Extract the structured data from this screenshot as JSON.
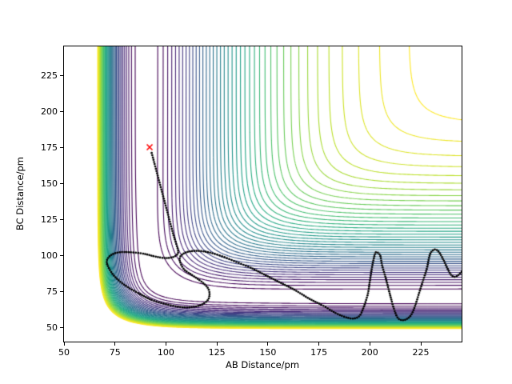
{
  "chart_data": {
    "type": "contour",
    "title": "",
    "xlabel": "AB Distance/pm",
    "ylabel": "BC Distance/pm",
    "xlim": [
      50,
      245
    ],
    "ylim": [
      40,
      245
    ],
    "xticks": [
      50,
      75,
      100,
      125,
      150,
      175,
      200,
      225
    ],
    "yticks": [
      50,
      75,
      100,
      125,
      150,
      175,
      200,
      225
    ],
    "grid": false,
    "legend": "none",
    "colormap": "viridis",
    "colormap_stops": [
      "#440154",
      "#482475",
      "#414487",
      "#355f8d",
      "#2a788e",
      "#21918c",
      "#22a884",
      "#44bf70",
      "#7ad151",
      "#bddf26",
      "#fde725"
    ],
    "levels": {
      "min": -4.58,
      "max": -0.22,
      "count": 40
    },
    "surface": {
      "model": "collinear-LEPS-potential-energy-surface",
      "sato": 0.18,
      "pairs": {
        "AB": {
          "D": 4.7,
          "beta": 0.029,
          "re": 90
        },
        "BC": {
          "D": 4.7,
          "beta": 0.031,
          "re": 71
        },
        "AC": {
          "D": 4.7,
          "beta": 0.029,
          "re": 81
        }
      }
    },
    "start_marker": {
      "symbol": "x",
      "color": "#ff0000",
      "x": 92,
      "y": 175
    },
    "trajectory": {
      "style": "dots",
      "color": "#000000",
      "points": [
        [
          93,
          171
        ],
        [
          94.5,
          163
        ],
        [
          96,
          155
        ],
        [
          97.5,
          147
        ],
        [
          99,
          139
        ],
        [
          100.5,
          131
        ],
        [
          102,
          123
        ],
        [
          103.5,
          115
        ],
        [
          105,
          108
        ],
        [
          106,
          102
        ],
        [
          104,
          99
        ],
        [
          100,
          98
        ],
        [
          95,
          99
        ],
        [
          89,
          101
        ],
        [
          83,
          102
        ],
        [
          77,
          102
        ],
        [
          73,
          100
        ],
        [
          71,
          96
        ],
        [
          72,
          91
        ],
        [
          75,
          85
        ],
        [
          80,
          79
        ],
        [
          86,
          74
        ],
        [
          93,
          69
        ],
        [
          100,
          66
        ],
        [
          107,
          64
        ],
        [
          113,
          64
        ],
        [
          118,
          66
        ],
        [
          121,
          70
        ],
        [
          121,
          76
        ],
        [
          118,
          81
        ],
        [
          113,
          86
        ],
        [
          109,
          90
        ],
        [
          107,
          95
        ],
        [
          107,
          99
        ],
        [
          110,
          102
        ],
        [
          115,
          103
        ],
        [
          121,
          102
        ],
        [
          128,
          99
        ],
        [
          135,
          95
        ],
        [
          142,
          91
        ],
        [
          149,
          86
        ],
        [
          156,
          81
        ],
        [
          163,
          76
        ],
        [
          170,
          70
        ],
        [
          177,
          65
        ],
        [
          183,
          60
        ],
        [
          188,
          57
        ],
        [
          192,
          56
        ],
        [
          195,
          58
        ],
        [
          197,
          64
        ],
        [
          199,
          73
        ],
        [
          200,
          82
        ],
        [
          201,
          91
        ],
        [
          202,
          98
        ],
        [
          203,
          102
        ],
        [
          205,
          100
        ],
        [
          206,
          93
        ],
        [
          208,
          83
        ],
        [
          210,
          72
        ],
        [
          212,
          62
        ],
        [
          214,
          56
        ],
        [
          217,
          55
        ],
        [
          220,
          58
        ],
        [
          222,
          64
        ],
        [
          224,
          73
        ],
        [
          226,
          82
        ],
        [
          228,
          91
        ],
        [
          229,
          98
        ],
        [
          230,
          102
        ],
        [
          232,
          104
        ],
        [
          234,
          102
        ],
        [
          236,
          97
        ],
        [
          238,
          91
        ],
        [
          240,
          86
        ],
        [
          242,
          85
        ],
        [
          244,
          87
        ],
        [
          246,
          90
        ]
      ]
    }
  }
}
